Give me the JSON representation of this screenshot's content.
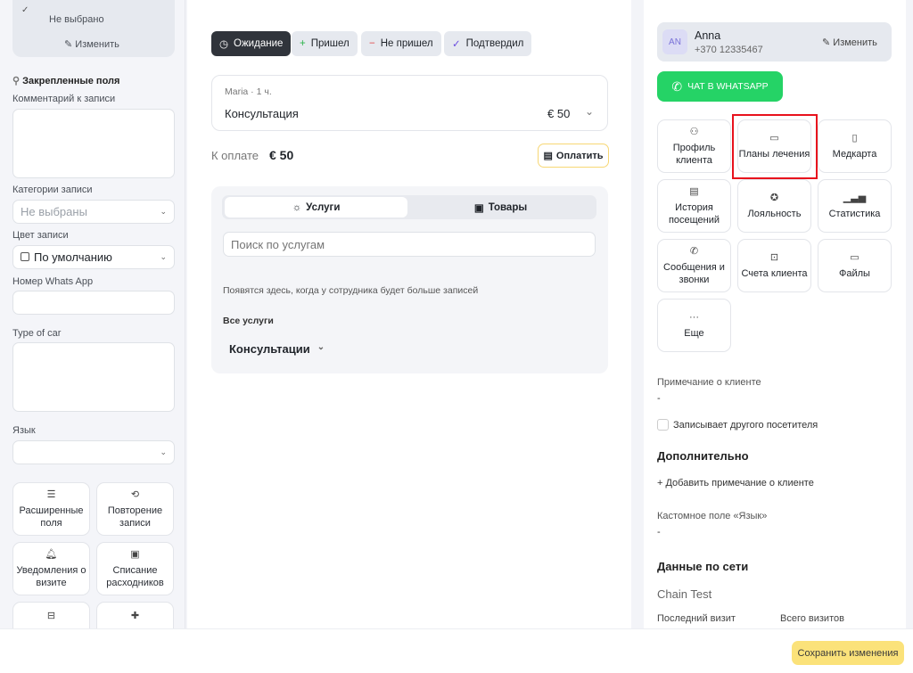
{
  "left": {
    "top_value": "Не выбрано",
    "edit": "Изменить",
    "pinned_title": "Закрепленные поля",
    "comment_label": "Комментарий к записи",
    "categories_label": "Категории записи",
    "categories_value": "Не выбраны",
    "color_label": "Цвет записи",
    "color_value": "По умолчанию",
    "whatsapp_label": "Номер Whats App",
    "car_label": "Type of car",
    "lang_label": "Язык",
    "tiles": [
      {
        "label": "Расширенные поля",
        "icon": "list-icon"
      },
      {
        "label": "Повторение записи",
        "icon": "repeat-icon"
      },
      {
        "label": "Уведомления о визите",
        "icon": "bell-icon"
      },
      {
        "label": "Списание расходников",
        "icon": "box-icon"
      },
      {
        "label": "",
        "icon": "jar-icon"
      },
      {
        "label": "",
        "icon": "cross-icon"
      }
    ]
  },
  "mid": {
    "statuses": [
      "Ожидание",
      "Пришел",
      "Не пришел",
      "Подтвердил"
    ],
    "service": {
      "meta": "Maria · 1 ч.",
      "name": "Консультация",
      "price": "€ 50"
    },
    "to_pay_label": "К оплате",
    "to_pay_value": "€ 50",
    "pay_button": "Оплатить",
    "tabs": [
      "Услуги",
      "Товары"
    ],
    "search_placeholder": "Поиск по услугам",
    "hint": "Появятся здесь, когда у сотрудника будет больше записей",
    "all_services": "Все услуги",
    "category": "Консультации"
  },
  "right": {
    "client": {
      "initials": "AN",
      "name": "Anna",
      "phone": "+370 12335467",
      "edit": "Изменить"
    },
    "whatsapp_button": "ЧАТ В WHATSAPP",
    "whatsapp_color": "#25d366",
    "tiles": [
      {
        "label": "Профиль клиента",
        "icon": "user-icon"
      },
      {
        "label": "Планы лечения",
        "icon": "folder-icon"
      },
      {
        "label": "Медкарта",
        "icon": "medcard-icon"
      },
      {
        "label": "История посещений",
        "icon": "history-icon"
      },
      {
        "label": "Лояльность",
        "icon": "discount-icon"
      },
      {
        "label": "Статистика",
        "icon": "chart-icon"
      },
      {
        "label": "Сообщения и звонки",
        "icon": "chat-phone-icon"
      },
      {
        "label": "Счета клиента",
        "icon": "briefcase-icon"
      },
      {
        "label": "Файлы",
        "icon": "folder-open-icon"
      },
      {
        "label": "Еще",
        "icon": "more-icon"
      }
    ],
    "note_label": "Примечание о клиенте",
    "note_value": "-",
    "other_visitor": "Записывает другого посетителя",
    "additional_title": "Дополнительно",
    "add_note": "Добавить примечание о клиенте",
    "custom_label": "Кастомное поле «Язык»",
    "custom_value": "-",
    "network_title": "Данные по сети",
    "chain": "Chain Test",
    "last_visit": "Последний визит",
    "total_visits": "Всего визитов"
  },
  "bottom": {
    "save": "Сохранить изменения"
  }
}
